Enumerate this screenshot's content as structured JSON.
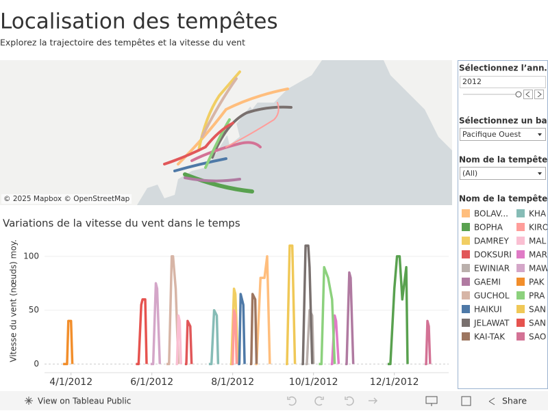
{
  "header": {
    "title": "Localisation des tempêtes",
    "subtitle": "Explorez la trajectoire des tempêtes et la vitesse du vent"
  },
  "map": {
    "attribution": "© 2025 Mapbox  © OpenStreetMap"
  },
  "filters": {
    "year": {
      "label": "Sélectionnez l’ann…",
      "value": "2012"
    },
    "basin": {
      "label": "Sélectionnez un ba…",
      "value": "Pacifique Ouest"
    },
    "storm": {
      "label": "Nom de la tempête",
      "value": "(All)"
    }
  },
  "legend_title": "Nom de la tempête",
  "toolbar": {
    "view": "View on Tableau Public",
    "share": "Share"
  },
  "chart_data": {
    "type": "line",
    "title": "Variations de la vitesse du vent dans le temps",
    "y_label": "Vitesse du vent (nœuds) moy.",
    "xlim": [
      "2012-03-12",
      "2013-01-11"
    ],
    "xticks": [
      {
        "value": "2012-04-01",
        "label": "4/1/2012"
      },
      {
        "value": "2012-06-01",
        "label": "6/1/2012"
      },
      {
        "value": "2012-08-01",
        "label": "8/1/2012"
      },
      {
        "value": "2012-10-01",
        "label": "10/1/2012"
      },
      {
        "value": "2012-12-01",
        "label": "12/1/2012"
      }
    ],
    "ylim": [
      -8,
      119
    ],
    "yticks": [
      0,
      50,
      100
    ],
    "grid": true,
    "series": [
      {
        "name": "BOLAV...",
        "color": "#ffbe7d",
        "x": [
          "2012-08-18",
          "2012-08-19",
          "2012-08-22",
          "2012-08-25",
          "2012-08-27",
          "2012-08-29"
        ],
        "values": [
          0,
          0,
          80,
          80,
          100,
          0
        ]
      },
      {
        "name": "BOPHA",
        "color": "#59a14f",
        "x": [
          "2012-11-26",
          "2012-11-28",
          "2012-12-01",
          "2012-12-03",
          "2012-12-05",
          "2012-12-07",
          "2012-12-10",
          "2012-12-11"
        ],
        "values": [
          0,
          0,
          70,
          100,
          100,
          60,
          90,
          0
        ]
      },
      {
        "name": "DAMREY",
        "color": "#f1ce63",
        "x": [
          "2012-07-30",
          "2012-07-31",
          "2012-08-02",
          "2012-08-03",
          "2012-08-05"
        ],
        "values": [
          0,
          0,
          70,
          65,
          0
        ]
      },
      {
        "name": "DOKSURI",
        "color": "#e15759",
        "x": [
          "2012-06-26",
          "2012-06-27",
          "2012-06-28",
          "2012-06-30",
          "2012-07-01"
        ],
        "values": [
          0,
          0,
          40,
          35,
          0
        ]
      },
      {
        "name": "EWINIAR",
        "color": "#bab0ac",
        "x": [
          "2012-09-25",
          "2012-09-26",
          "2012-09-28",
          "2012-09-30",
          "2012-10-01"
        ],
        "values": [
          0,
          0,
          50,
          45,
          0
        ]
      },
      {
        "name": "GAEMI",
        "color": "#b07aa1",
        "x": [
          "2012-10-25",
          "2012-10-26",
          "2012-10-28",
          "2012-10-29",
          "2012-10-31"
        ],
        "values": [
          0,
          0,
          85,
          80,
          0
        ]
      },
      {
        "name": "GUCHOL",
        "color": "#d7b5a6",
        "x": [
          "2012-06-12",
          "2012-06-14",
          "2012-06-16",
          "2012-06-17",
          "2012-06-19",
          "2012-06-21"
        ],
        "values": [
          0,
          0,
          100,
          100,
          70,
          0
        ]
      },
      {
        "name": "HAIKUI",
        "color": "#4e79a7",
        "x": [
          "2012-08-05",
          "2012-08-06",
          "2012-08-07",
          "2012-08-09",
          "2012-08-10"
        ],
        "values": [
          0,
          0,
          65,
          55,
          0
        ]
      },
      {
        "name": "JELAWAT",
        "color": "#79706e",
        "x": [
          "2012-09-22",
          "2012-09-23",
          "2012-09-25",
          "2012-09-27",
          "2012-09-28",
          "2012-09-30"
        ],
        "values": [
          0,
          0,
          110,
          110,
          90,
          0
        ]
      },
      {
        "name": "KAI-TAK",
        "color": "#9d7660",
        "x": [
          "2012-08-14",
          "2012-08-15",
          "2012-08-16",
          "2012-08-18",
          "2012-08-19"
        ],
        "values": [
          0,
          0,
          65,
          60,
          0
        ]
      },
      {
        "name": "KHA",
        "color": "#86bcb6",
        "x": [
          "2012-07-14",
          "2012-07-16",
          "2012-07-18",
          "2012-07-20",
          "2012-07-21"
        ],
        "values": [
          0,
          0,
          50,
          45,
          0
        ]
      },
      {
        "name": "KIRO",
        "color": "#ff9d9a",
        "x": [
          "2012-07-31",
          "2012-08-01",
          "2012-08-02",
          "2012-08-03",
          "2012-08-04"
        ],
        "values": [
          0,
          0,
          50,
          45,
          0
        ]
      },
      {
        "name": "MAL",
        "color": "#fabfd2",
        "x": [
          "2012-06-19",
          "2012-06-20",
          "2012-06-21",
          "2012-06-22",
          "2012-06-23"
        ],
        "values": [
          0,
          0,
          45,
          40,
          0
        ]
      },
      {
        "name": "MAR",
        "color": "#e07bc6",
        "x": [
          "2012-10-14",
          "2012-10-15",
          "2012-10-17",
          "2012-10-18",
          "2012-10-20"
        ],
        "values": [
          0,
          0,
          45,
          40,
          0
        ]
      },
      {
        "name": "MAW",
        "color": "#d4a6c8",
        "x": [
          "2012-05-31",
          "2012-06-02",
          "2012-06-04",
          "2012-06-05",
          "2012-06-07"
        ],
        "values": [
          0,
          0,
          75,
          70,
          0
        ]
      },
      {
        "name": "PAK",
        "color": "#f28e2b",
        "x": [
          "2012-03-26",
          "2012-03-29",
          "2012-03-30",
          "2012-04-01",
          "2012-04-02"
        ],
        "values": [
          0,
          0,
          40,
          40,
          0
        ]
      },
      {
        "name": "PRA",
        "color": "#8cd17d",
        "x": [
          "2012-10-05",
          "2012-10-07",
          "2012-10-09",
          "2012-10-12",
          "2012-10-15",
          "2012-10-17"
        ],
        "values": [
          0,
          0,
          90,
          80,
          60,
          0
        ]
      },
      {
        "name": "SAN",
        "color": "#f0c857",
        "x": [
          "2012-09-10",
          "2012-09-11",
          "2012-09-13",
          "2012-09-15",
          "2012-09-17"
        ],
        "values": [
          0,
          0,
          110,
          110,
          0
        ]
      },
      {
        "name": "SAN",
        "color": "#e6534f",
        "x": [
          "2012-05-20",
          "2012-05-22",
          "2012-05-24",
          "2012-05-25",
          "2012-05-27",
          "2012-05-28"
        ],
        "values": [
          0,
          0,
          55,
          60,
          60,
          0
        ]
      },
      {
        "name": "SAO",
        "color": "#d37295",
        "x": [
          "2012-12-24",
          "2012-12-25",
          "2012-12-26",
          "2012-12-27",
          "2012-12-28"
        ],
        "values": [
          0,
          0,
          40,
          35,
          0
        ]
      }
    ]
  }
}
